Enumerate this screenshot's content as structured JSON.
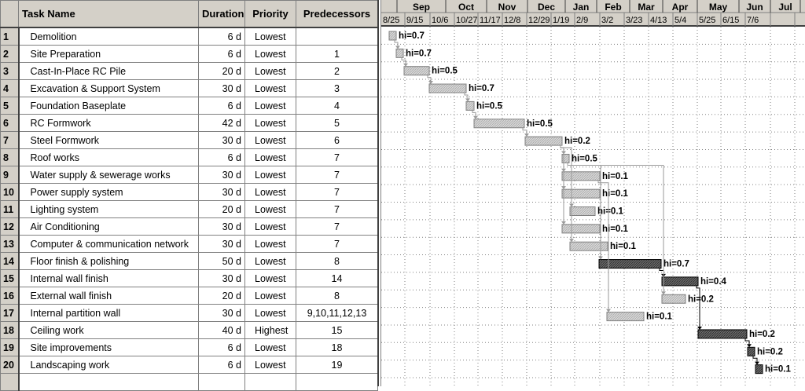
{
  "table": {
    "columns": {
      "task_name": "Task Name",
      "duration": "Duration",
      "priority": "Priority",
      "predecessors": "Predecessors"
    },
    "rows": [
      {
        "id": "1",
        "name": "Demolition",
        "duration": "6 d",
        "priority": "Lowest",
        "predecessors": ""
      },
      {
        "id": "2",
        "name": "Site Preparation",
        "duration": "6 d",
        "priority": "Lowest",
        "predecessors": "1"
      },
      {
        "id": "3",
        "name": "Cast-In-Place RC Pile",
        "duration": "20 d",
        "priority": "Lowest",
        "predecessors": "2"
      },
      {
        "id": "4",
        "name": "Excavation & Support System",
        "duration": "30 d",
        "priority": "Lowest",
        "predecessors": "3"
      },
      {
        "id": "5",
        "name": "Foundation Baseplate",
        "duration": "6 d",
        "priority": "Lowest",
        "predecessors": "4"
      },
      {
        "id": "6",
        "name": "RC Formwork",
        "duration": "42 d",
        "priority": "Lowest",
        "predecessors": "5"
      },
      {
        "id": "7",
        "name": "Steel Formwork",
        "duration": "30 d",
        "priority": "Lowest",
        "predecessors": "6"
      },
      {
        "id": "8",
        "name": "Roof works",
        "duration": "6 d",
        "priority": "Lowest",
        "predecessors": "7"
      },
      {
        "id": "9",
        "name": "Water supply & sewerage works",
        "duration": "30 d",
        "priority": "Lowest",
        "predecessors": "7"
      },
      {
        "id": "10",
        "name": "Power supply system",
        "duration": "30 d",
        "priority": "Lowest",
        "predecessors": "7"
      },
      {
        "id": "11",
        "name": "Lighting system",
        "duration": "20 d",
        "priority": "Lowest",
        "predecessors": "7"
      },
      {
        "id": "12",
        "name": "Air Conditioning",
        "duration": "30 d",
        "priority": "Lowest",
        "predecessors": "7"
      },
      {
        "id": "13",
        "name": "Computer & communication network",
        "duration": "30 d",
        "priority": "Lowest",
        "predecessors": "7"
      },
      {
        "id": "14",
        "name": "Floor finish & polishing",
        "duration": "50 d",
        "priority": "Lowest",
        "predecessors": "8"
      },
      {
        "id": "15",
        "name": "Internal wall finish",
        "duration": "30 d",
        "priority": "Lowest",
        "predecessors": "14"
      },
      {
        "id": "16",
        "name": "External wall finish",
        "duration": "20 d",
        "priority": "Lowest",
        "predecessors": "8"
      },
      {
        "id": "17",
        "name": "Internal partition wall",
        "duration": "30 d",
        "priority": "Lowest",
        "predecessors": "9,10,11,12,13"
      },
      {
        "id": "18",
        "name": "Ceiling work",
        "duration": "40 d",
        "priority": "Highest",
        "predecessors": "15"
      },
      {
        "id": "19",
        "name": "Site improvements",
        "duration": "6 d",
        "priority": "Lowest",
        "predecessors": "18"
      },
      {
        "id": "20",
        "name": "Landscaping work",
        "duration": "6 d",
        "priority": "Lowest",
        "predecessors": "19"
      }
    ]
  },
  "gantt": {
    "months": [
      "Sep",
      "Oct",
      "Nov",
      "Dec",
      "Jan",
      "Feb",
      "Mar",
      "Apr",
      "May",
      "Jun",
      "Jul"
    ],
    "weeks": [
      "8/25",
      "9/15",
      "10/6",
      "10/27",
      "11/17",
      "12/8",
      "12/29",
      "1/19",
      "2/9",
      "3/2",
      "3/23",
      "4/13",
      "5/4",
      "5/25",
      "6/15",
      "7/6"
    ],
    "bar_labels": [
      "hi=0.7",
      "hi=0.7",
      "hi=0.5",
      "hi=0.7",
      "hi=0.5",
      "hi=0.5",
      "hi=0.2",
      "hi=0.5",
      "hi=0.1",
      "hi=0.1",
      "hi=0.1",
      "hi=0.1",
      "hi=0.1",
      "hi=0.7",
      "hi=0.4",
      "hi=0.2",
      "hi=0.1",
      "hi=0.2",
      "hi=0.2",
      "hi=0.1"
    ]
  }
}
